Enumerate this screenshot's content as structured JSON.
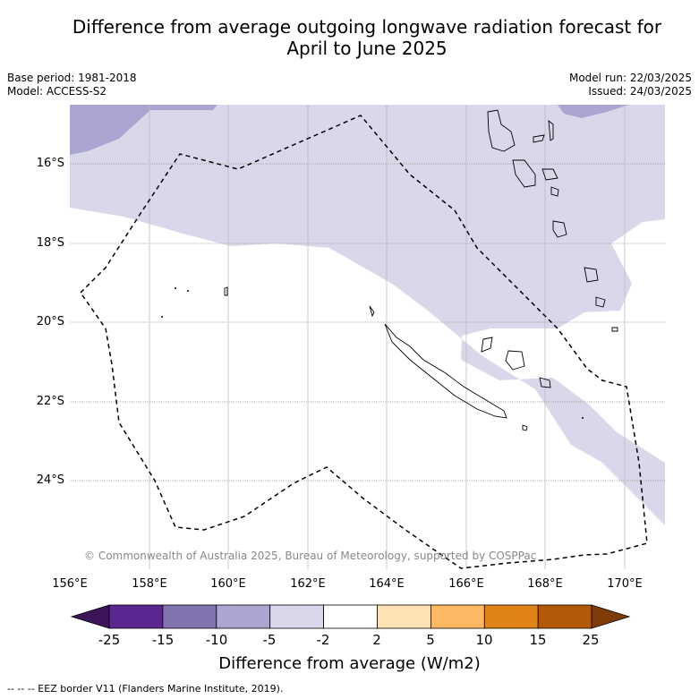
{
  "title_line1": "Difference from average outgoing longwave radiation forecast for",
  "title_line2": "April to June 2025",
  "base_period": "Base period: 1981-2018",
  "model": "Model: ACCESS-S2",
  "model_run": "Model run: 22/03/2025",
  "issued": "Issued: 24/03/2025",
  "lat_labels": [
    "16°S",
    "18°S",
    "20°S",
    "22°S",
    "24°S"
  ],
  "lon_labels": [
    "156°E",
    "158°E",
    "160°E",
    "162°E",
    "164°E",
    "166°E",
    "168°E",
    "170°E"
  ],
  "copyright": "© Commonwealth of Australia 2025, Bureau of Meteorology, supported by COSPPac",
  "colorbar": {
    "ticks": [
      "-25",
      "-15",
      "-10",
      "-5",
      "-2",
      "2",
      "5",
      "10",
      "15",
      "25"
    ],
    "colors": [
      "#3d1458",
      "#5a2790",
      "#8073ae",
      "#aba6d1",
      "#d8d8ea",
      "#ffffff",
      "#fee1b4",
      "#fdb863",
      "#e08214",
      "#b35806",
      "#7f3b08"
    ],
    "label": "Difference from average (W/m2)"
  },
  "footer": "-- -- -- EEZ border V11 (Flanders Marine Institute, 2019)."
}
